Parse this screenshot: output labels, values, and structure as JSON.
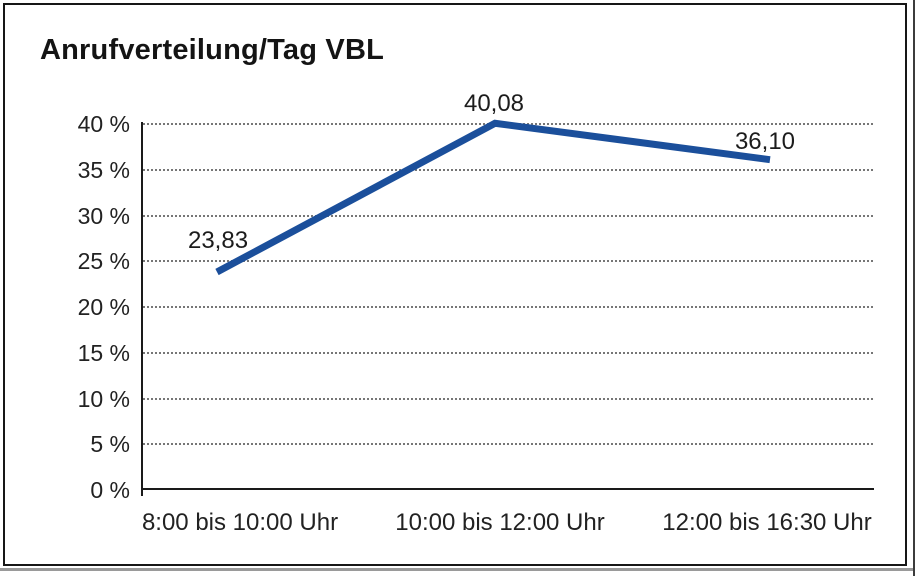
{
  "page": {
    "title": "Anrufverteilung/Tag VBL"
  },
  "chart_data": {
    "type": "line",
    "title": "Anrufverteilung/Tag VBL",
    "categories": [
      "8:00 bis 10:00 Uhr",
      "10:00 bis 12:00 Uhr",
      "12:00 bis 16:30 Uhr"
    ],
    "values": [
      23.83,
      40.08,
      36.1
    ],
    "point_labels": [
      "23,83",
      "40,08",
      "36,10"
    ],
    "xlabel": "",
    "ylabel": "",
    "ylim": [
      0,
      40
    ],
    "ytick_step": 5,
    "ytick_labels": [
      "0 %",
      "5 %",
      "10 %",
      "15 %",
      "20 %",
      "25 %",
      "30 %",
      "35 %",
      "40 %"
    ],
    "grid": "horizontal-dotted",
    "legend": "none",
    "line_color": "#1b4f9b",
    "axis_color": "#1a1a1a",
    "gridline_color": "#767676"
  }
}
